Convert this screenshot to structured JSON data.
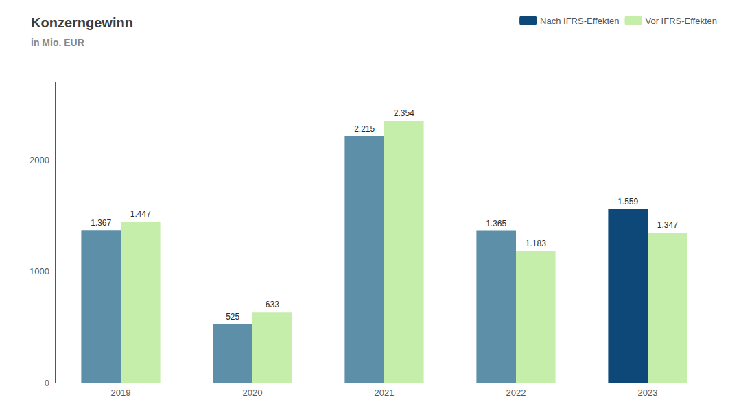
{
  "chart_data": {
    "type": "bar",
    "title": "Konzerngewinn",
    "subtitle": "in Mio. EUR",
    "categories": [
      "2019",
      "2020",
      "2021",
      "2022",
      "2023"
    ],
    "series": [
      {
        "name": "Nach IFRS-Effekten",
        "color": "#0d4878",
        "colors": [
          "#5d8fa8",
          "#5d8fa8",
          "#5d8fa8",
          "#5d8fa8",
          "#0d4878"
        ],
        "values": [
          1367,
          525,
          2215,
          1365,
          1559
        ],
        "value_labels": [
          "1.367",
          "525",
          "2.215",
          "1.365",
          "1.559"
        ]
      },
      {
        "name": "Vor IFRS-Effekten",
        "color": "#c5eeaa",
        "values": [
          1447,
          633,
          2354,
          1183,
          1347
        ],
        "value_labels": [
          "1.447",
          "633",
          "2.354",
          "1.183",
          "1.347"
        ]
      }
    ],
    "ylim": [
      0,
      2700
    ],
    "yticks": [
      0,
      1000,
      2000
    ],
    "grid": true,
    "legend": "upper right",
    "data_labels": true
  }
}
